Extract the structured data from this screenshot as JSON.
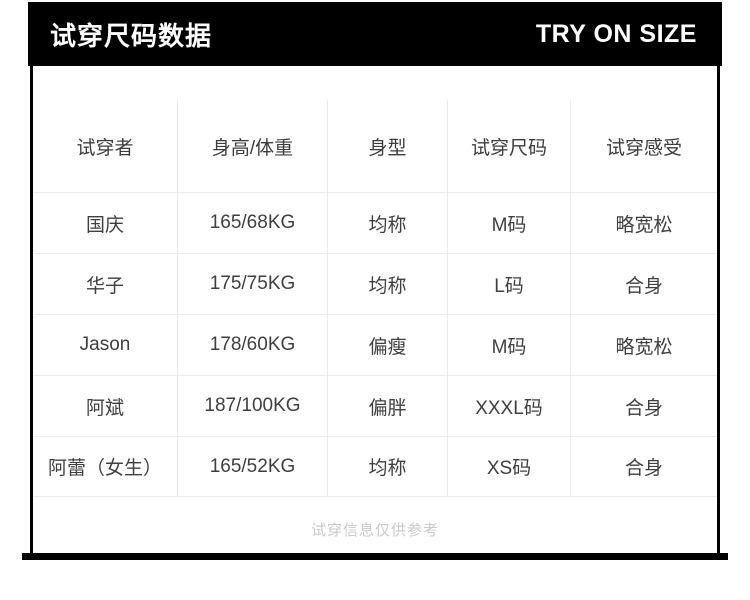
{
  "header": {
    "title_zh": "试穿尺码数据",
    "title_en": "TRY ON SIZE",
    "bg_color": "#000000",
    "text_color": "#ffffff"
  },
  "table": {
    "columns": [
      "试穿者",
      "身高/体重",
      "身型",
      "试穿尺码",
      "试穿感受"
    ],
    "rows": [
      [
        "国庆",
        "165/68KG",
        "均称",
        "M码",
        "略宽松"
      ],
      [
        "华子",
        "175/75KG",
        "均称",
        "L码",
        "合身"
      ],
      [
        "Jason",
        "178/60KG",
        "偏瘦",
        "M码",
        "略宽松"
      ],
      [
        "阿斌",
        "187/100KG",
        "偏胖",
        "XXXL码",
        "合身"
      ],
      [
        "阿蕾（女生）",
        "165/52KG",
        "均称",
        "XS码",
        "合身"
      ]
    ]
  },
  "footer": {
    "note": "试穿信息仅供参考"
  },
  "colors": {
    "accent": "#000000",
    "grid_line": "#ebebeb",
    "body_text": "#3f3f3f",
    "note_text": "#c9c9c9"
  }
}
